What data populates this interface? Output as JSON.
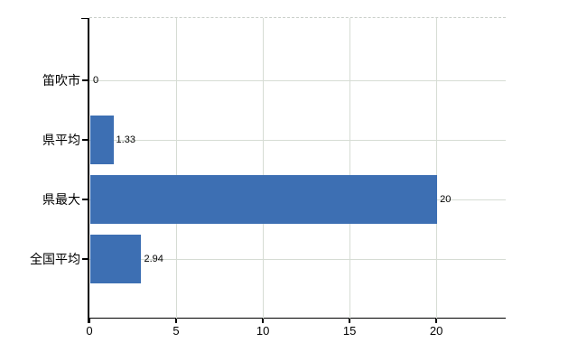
{
  "chart_data": {
    "type": "bar",
    "orientation": "horizontal",
    "title": "",
    "xlabel": "",
    "ylabel": "",
    "categories": [
      "笛吹市",
      "県平均",
      "県最大",
      "全国平均"
    ],
    "values": [
      0,
      1.33,
      20,
      2.94
    ],
    "value_labels": [
      "0",
      "1.33",
      "20",
      "2.94"
    ],
    "x_ticks": [
      0,
      5,
      10,
      15,
      20
    ],
    "x_tick_labels": [
      "0",
      "5",
      "10",
      "15",
      "20"
    ],
    "xlim": [
      0,
      24
    ],
    "grid": true,
    "legend": false,
    "colors": {
      "bar": "#3d6fb3",
      "grid": "#d6dcd4",
      "top_border": "#c9cfc9",
      "axis": "#000000",
      "text": "#000000",
      "background": "#ffffff"
    }
  }
}
